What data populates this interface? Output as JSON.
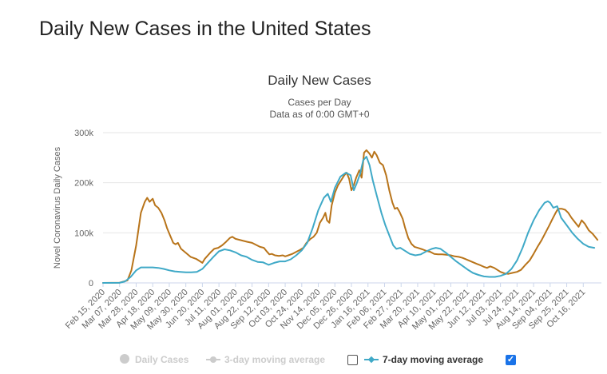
{
  "page_title": "Daily New Cases in the United States",
  "colors": {
    "series_cases_3day": "#b8741a",
    "series_7day": "#3fa9c7",
    "legend_disabled": "#cccccc",
    "grid": "#e6e6e6",
    "checkbox_on": "#1a73e8"
  },
  "legend": {
    "daily_cases": {
      "label": "Daily Cases",
      "visible": false
    },
    "three_day": {
      "label": "3-day moving average",
      "visible": true,
      "checked": false
    },
    "seven_day": {
      "label": "7-day moving average",
      "visible": true,
      "checked": true
    },
    "checkmark": "✓"
  },
  "chart_data": {
    "type": "line",
    "title": "Daily New Cases",
    "subtitle_line1": "Cases per Day",
    "subtitle_line2": "Data as of 0:00 GMT+0",
    "ylabel": "Novel Coronavirus Daily Cases",
    "xlabel": "",
    "ylim": [
      0,
      300000
    ],
    "yticks": [
      0,
      100000,
      200000,
      300000
    ],
    "ytick_labels": [
      "0",
      "100k",
      "200k",
      "300k"
    ],
    "x_start_date": "2020-02-15",
    "x_end_date": "2021-11-08",
    "x_tick_labels": [
      "Feb 15, 2020",
      "Mar 07, 2020",
      "Mar 28, 2020",
      "Apr 18, 2020",
      "May 09, 2020",
      "May 30, 2020",
      "Jun 20, 2020",
      "Jul 11, 2020",
      "Aug 01, 2020",
      "Aug 22, 2020",
      "Sep 12, 2020",
      "Oct 03, 2020",
      "Oct 24, 2020",
      "Nov 14, 2020",
      "Dec 05, 2020",
      "Dec 26, 2020",
      "Jan 16, 2021",
      "Feb 06, 2021",
      "Feb 27, 2021",
      "Mar 20, 2021",
      "Apr 10, 2021",
      "May 01, 2021",
      "May 22, 2021",
      "Jun 12, 2021",
      "Jul 03, 2021",
      "Jul 24, 2021",
      "Aug 14, 2021",
      "Sep 04, 2021",
      "Sep 25, 2021",
      "Oct 16, 2021"
    ],
    "series": [
      {
        "name": "3-day moving average",
        "color": "#b8741a",
        "points": [
          [
            "2020-02-15",
            0
          ],
          [
            "2020-03-07",
            500
          ],
          [
            "2020-03-17",
            5000
          ],
          [
            "2020-03-22",
            25000
          ],
          [
            "2020-03-28",
            75000
          ],
          [
            "2020-04-03",
            140000
          ],
          [
            "2020-04-08",
            162000
          ],
          [
            "2020-04-11",
            170000
          ],
          [
            "2020-04-14",
            162000
          ],
          [
            "2020-04-18",
            168000
          ],
          [
            "2020-04-21",
            155000
          ],
          [
            "2020-04-25",
            150000
          ],
          [
            "2020-04-29",
            140000
          ],
          [
            "2020-05-03",
            125000
          ],
          [
            "2020-05-06",
            110000
          ],
          [
            "2020-05-10",
            95000
          ],
          [
            "2020-05-14",
            80000
          ],
          [
            "2020-05-17",
            77000
          ],
          [
            "2020-05-20",
            80000
          ],
          [
            "2020-05-24",
            68000
          ],
          [
            "2020-05-30",
            60000
          ],
          [
            "2020-06-05",
            52000
          ],
          [
            "2020-06-12",
            48000
          ],
          [
            "2020-06-16",
            44000
          ],
          [
            "2020-06-20",
            40000
          ],
          [
            "2020-06-23",
            48000
          ],
          [
            "2020-06-27",
            55000
          ],
          [
            "2020-07-01",
            62000
          ],
          [
            "2020-07-05",
            68000
          ],
          [
            "2020-07-10",
            70000
          ],
          [
            "2020-07-15",
            75000
          ],
          [
            "2020-07-20",
            82000
          ],
          [
            "2020-07-25",
            90000
          ],
          [
            "2020-07-28",
            92000
          ],
          [
            "2020-08-01",
            88000
          ],
          [
            "2020-08-06",
            86000
          ],
          [
            "2020-08-11",
            84000
          ],
          [
            "2020-08-16",
            82000
          ],
          [
            "2020-08-22",
            80000
          ],
          [
            "2020-08-27",
            76000
          ],
          [
            "2020-09-01",
            72000
          ],
          [
            "2020-09-06",
            70000
          ],
          [
            "2020-09-10",
            62000
          ],
          [
            "2020-09-13",
            57000
          ],
          [
            "2020-09-16",
            58000
          ],
          [
            "2020-09-20",
            55000
          ],
          [
            "2020-09-25",
            54000
          ],
          [
            "2020-09-30",
            55000
          ],
          [
            "2020-10-03",
            53000
          ],
          [
            "2020-10-07",
            55000
          ],
          [
            "2020-10-12",
            58000
          ],
          [
            "2020-10-17",
            62000
          ],
          [
            "2020-10-22",
            66000
          ],
          [
            "2020-10-26",
            70000
          ],
          [
            "2020-10-30",
            80000
          ],
          [
            "2020-11-04",
            88000
          ],
          [
            "2020-11-08",
            92000
          ],
          [
            "2020-11-12",
            100000
          ],
          [
            "2020-11-16",
            120000
          ],
          [
            "2020-11-20",
            130000
          ],
          [
            "2020-11-23",
            140000
          ],
          [
            "2020-11-25",
            125000
          ],
          [
            "2020-11-28",
            120000
          ],
          [
            "2020-12-01",
            155000
          ],
          [
            "2020-12-05",
            180000
          ],
          [
            "2020-12-09",
            195000
          ],
          [
            "2020-12-13",
            205000
          ],
          [
            "2020-12-17",
            215000
          ],
          [
            "2020-12-20",
            220000
          ],
          [
            "2020-12-23",
            208000
          ],
          [
            "2020-12-26",
            185000
          ],
          [
            "2020-12-29",
            195000
          ],
          [
            "2021-01-01",
            210000
          ],
          [
            "2021-01-05",
            225000
          ],
          [
            "2021-01-08",
            210000
          ],
          [
            "2021-01-11",
            260000
          ],
          [
            "2021-01-14",
            265000
          ],
          [
            "2021-01-18",
            258000
          ],
          [
            "2021-01-21",
            250000
          ],
          [
            "2021-01-24",
            262000
          ],
          [
            "2021-01-27",
            255000
          ],
          [
            "2021-01-31",
            240000
          ],
          [
            "2021-02-04",
            235000
          ],
          [
            "2021-02-08",
            215000
          ],
          [
            "2021-02-12",
            185000
          ],
          [
            "2021-02-16",
            160000
          ],
          [
            "2021-02-19",
            148000
          ],
          [
            "2021-02-22",
            150000
          ],
          [
            "2021-02-25",
            142000
          ],
          [
            "2021-03-01",
            128000
          ],
          [
            "2021-03-04",
            110000
          ],
          [
            "2021-03-08",
            90000
          ],
          [
            "2021-03-12",
            78000
          ],
          [
            "2021-03-16",
            72000
          ],
          [
            "2021-03-20",
            70000
          ],
          [
            "2021-03-26",
            67000
          ],
          [
            "2021-03-31",
            64000
          ],
          [
            "2021-04-05",
            62000
          ],
          [
            "2021-04-10",
            58000
          ],
          [
            "2021-04-15",
            57000
          ],
          [
            "2021-04-20",
            57000
          ],
          [
            "2021-04-26",
            56000
          ],
          [
            "2021-05-01",
            55000
          ],
          [
            "2021-05-06",
            53000
          ],
          [
            "2021-05-11",
            52000
          ],
          [
            "2021-05-16",
            50000
          ],
          [
            "2021-05-22",
            46000
          ],
          [
            "2021-05-28",
            42000
          ],
          [
            "2021-06-03",
            38000
          ],
          [
            "2021-06-08",
            35000
          ],
          [
            "2021-06-12",
            32000
          ],
          [
            "2021-06-16",
            30000
          ],
          [
            "2021-06-20",
            33000
          ],
          [
            "2021-06-25",
            30000
          ],
          [
            "2021-06-29",
            26000
          ],
          [
            "2021-07-03",
            22000
          ],
          [
            "2021-07-08",
            19000
          ],
          [
            "2021-07-13",
            18000
          ],
          [
            "2021-07-18",
            20000
          ],
          [
            "2021-07-24",
            22000
          ],
          [
            "2021-07-29",
            26000
          ],
          [
            "2021-08-03",
            35000
          ],
          [
            "2021-08-09",
            45000
          ],
          [
            "2021-08-14",
            58000
          ],
          [
            "2021-08-19",
            72000
          ],
          [
            "2021-08-24",
            85000
          ],
          [
            "2021-08-29",
            100000
          ],
          [
            "2021-09-03",
            115000
          ],
          [
            "2021-09-07",
            128000
          ],
          [
            "2021-09-11",
            140000
          ],
          [
            "2021-09-14",
            148000
          ],
          [
            "2021-09-19",
            148000
          ],
          [
            "2021-09-23",
            146000
          ],
          [
            "2021-09-27",
            140000
          ],
          [
            "2021-10-01",
            130000
          ],
          [
            "2021-10-06",
            120000
          ],
          [
            "2021-10-10",
            112000
          ],
          [
            "2021-10-14",
            125000
          ],
          [
            "2021-10-18",
            118000
          ],
          [
            "2021-10-23",
            105000
          ],
          [
            "2021-10-28",
            98000
          ],
          [
            "2021-11-03",
            86000
          ]
        ]
      },
      {
        "name": "7-day moving average",
        "color": "#3fa9c7",
        "points": [
          [
            "2020-02-15",
            0
          ],
          [
            "2020-03-07",
            200
          ],
          [
            "2020-03-14",
            3000
          ],
          [
            "2020-03-21",
            12000
          ],
          [
            "2020-03-28",
            25000
          ],
          [
            "2020-04-03",
            31000
          ],
          [
            "2020-04-10",
            31000
          ],
          [
            "2020-04-18",
            31000
          ],
          [
            "2020-04-25",
            30000
          ],
          [
            "2020-05-02",
            28000
          ],
          [
            "2020-05-09",
            25000
          ],
          [
            "2020-05-16",
            23000
          ],
          [
            "2020-05-23",
            22000
          ],
          [
            "2020-05-30",
            21000
          ],
          [
            "2020-06-06",
            21000
          ],
          [
            "2020-06-13",
            22000
          ],
          [
            "2020-06-20",
            28000
          ],
          [
            "2020-06-27",
            40000
          ],
          [
            "2020-07-04",
            52000
          ],
          [
            "2020-07-11",
            63000
          ],
          [
            "2020-07-18",
            67000
          ],
          [
            "2020-07-25",
            65000
          ],
          [
            "2020-08-01",
            61000
          ],
          [
            "2020-08-08",
            55000
          ],
          [
            "2020-08-15",
            52000
          ],
          [
            "2020-08-22",
            46000
          ],
          [
            "2020-08-29",
            42000
          ],
          [
            "2020-09-05",
            41000
          ],
          [
            "2020-09-12",
            36000
          ],
          [
            "2020-09-19",
            40000
          ],
          [
            "2020-09-26",
            43000
          ],
          [
            "2020-10-03",
            43000
          ],
          [
            "2020-10-10",
            47000
          ],
          [
            "2020-10-17",
            55000
          ],
          [
            "2020-10-24",
            65000
          ],
          [
            "2020-10-31",
            80000
          ],
          [
            "2020-11-07",
            110000
          ],
          [
            "2020-11-14",
            145000
          ],
          [
            "2020-11-21",
            170000
          ],
          [
            "2020-11-26",
            178000
          ],
          [
            "2020-11-30",
            162000
          ],
          [
            "2020-12-05",
            190000
          ],
          [
            "2020-12-12",
            212000
          ],
          [
            "2020-12-19",
            220000
          ],
          [
            "2020-12-25",
            215000
          ],
          [
            "2020-12-29",
            185000
          ],
          [
            "2021-01-02",
            200000
          ],
          [
            "2021-01-06",
            218000
          ],
          [
            "2021-01-10",
            245000
          ],
          [
            "2021-01-14",
            252000
          ],
          [
            "2021-01-18",
            235000
          ],
          [
            "2021-01-22",
            205000
          ],
          [
            "2021-01-27",
            175000
          ],
          [
            "2021-02-02",
            140000
          ],
          [
            "2021-02-07",
            115000
          ],
          [
            "2021-02-12",
            95000
          ],
          [
            "2021-02-17",
            75000
          ],
          [
            "2021-02-21",
            68000
          ],
          [
            "2021-02-26",
            70000
          ],
          [
            "2021-03-03",
            65000
          ],
          [
            "2021-03-10",
            58000
          ],
          [
            "2021-03-17",
            55000
          ],
          [
            "2021-03-24",
            57000
          ],
          [
            "2021-03-31",
            63000
          ],
          [
            "2021-04-07",
            68000
          ],
          [
            "2021-04-12",
            70000
          ],
          [
            "2021-04-18",
            68000
          ],
          [
            "2021-04-25",
            60000
          ],
          [
            "2021-05-01",
            52000
          ],
          [
            "2021-05-08",
            43000
          ],
          [
            "2021-05-15",
            35000
          ],
          [
            "2021-05-22",
            27000
          ],
          [
            "2021-05-29",
            20000
          ],
          [
            "2021-06-05",
            16000
          ],
          [
            "2021-06-12",
            13000
          ],
          [
            "2021-06-19",
            12000
          ],
          [
            "2021-06-26",
            12000
          ],
          [
            "2021-07-03",
            14000
          ],
          [
            "2021-07-10",
            18000
          ],
          [
            "2021-07-17",
            28000
          ],
          [
            "2021-07-24",
            45000
          ],
          [
            "2021-07-31",
            70000
          ],
          [
            "2021-08-07",
            100000
          ],
          [
            "2021-08-14",
            125000
          ],
          [
            "2021-08-21",
            145000
          ],
          [
            "2021-08-28",
            160000
          ],
          [
            "2021-09-01",
            163000
          ],
          [
            "2021-09-04",
            160000
          ],
          [
            "2021-09-08",
            150000
          ],
          [
            "2021-09-13",
            153000
          ],
          [
            "2021-09-18",
            130000
          ],
          [
            "2021-09-25",
            115000
          ],
          [
            "2021-10-02",
            100000
          ],
          [
            "2021-10-09",
            88000
          ],
          [
            "2021-10-16",
            78000
          ],
          [
            "2021-10-23",
            72000
          ],
          [
            "2021-10-30",
            70000
          ]
        ]
      }
    ]
  }
}
